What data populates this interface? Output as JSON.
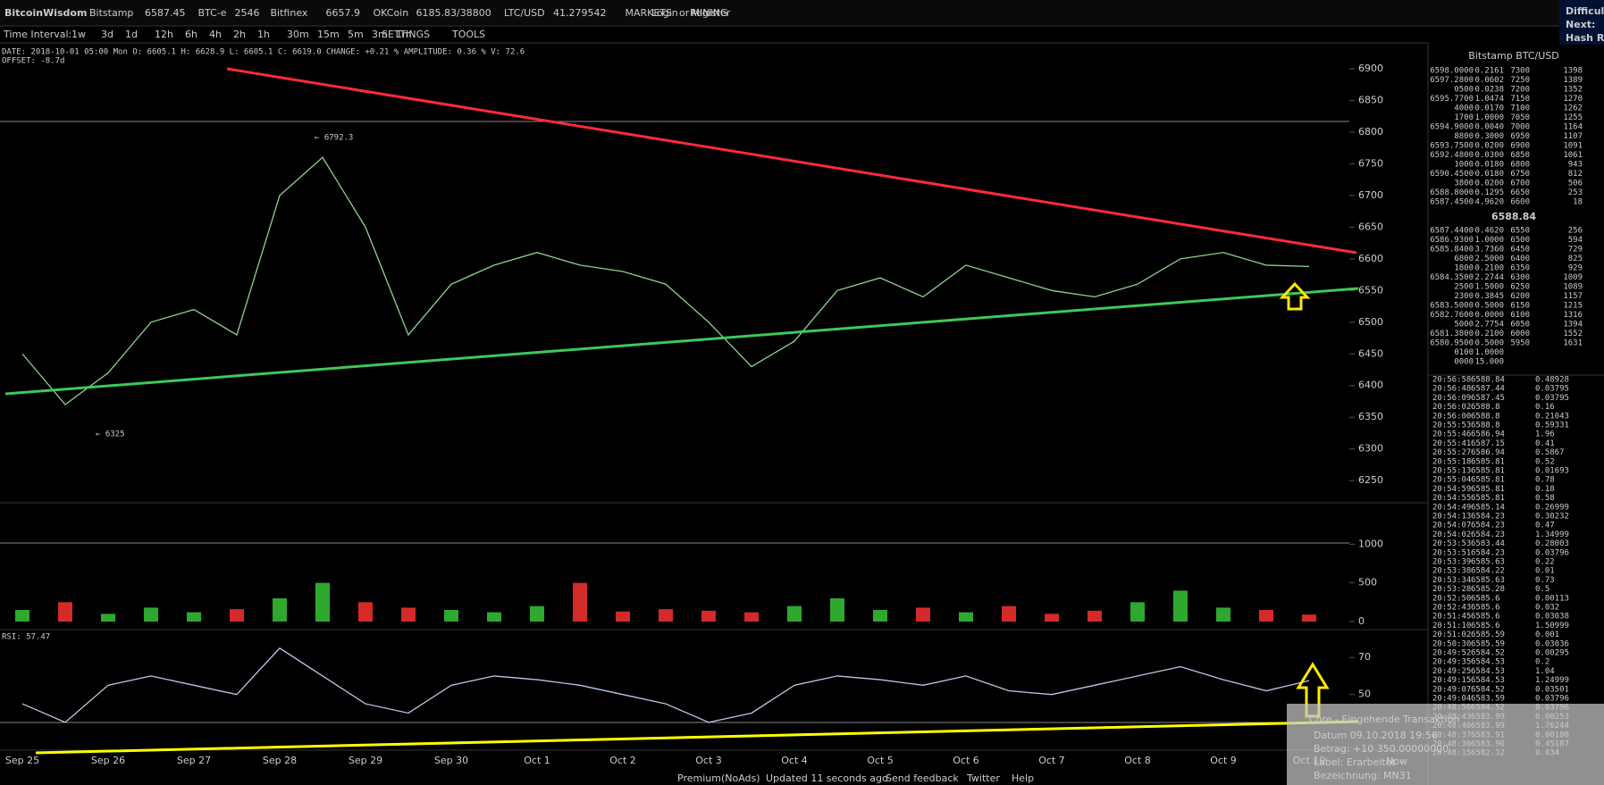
{
  "header": {
    "brand": "BitcoinWisdom",
    "tickers": [
      {
        "name": "Bitstamp",
        "price": "6587.45"
      },
      {
        "name": "BTC-e",
        "price": "2546"
      },
      {
        "name": "Bitfinex",
        "price": "6657.9"
      },
      {
        "name": "OKCoin",
        "price": "6185.83/38800"
      },
      {
        "name": "LTC/USD",
        "price": "41.279542"
      }
    ],
    "menus": [
      "MARKETS",
      "MINING"
    ],
    "login": "Login",
    "or": "or",
    "register": "Register",
    "difficulty": [
      "Difficulty",
      "Next:",
      "Hash Ra"
    ]
  },
  "toolbar": {
    "label": "Time Interval:",
    "intervals": [
      "1w",
      "3d",
      "1d",
      "12h",
      "6h",
      "4h",
      "2h",
      "1h",
      "30m",
      "15m",
      "5m",
      "3m",
      "1m"
    ],
    "settings": "SETTINGS",
    "tools": "TOOLS"
  },
  "info": {
    "line": "DATE: 2018-10-01 05:00 Mon   O: 6605.1   H: 6628.9   L: 6605.1   C: 6619.0   CHANGE: +0.21 %   AMPLITUDE: 0.36 %   V: 72.6",
    "offset": "OFFSET: -8.7d",
    "high_note": "← 6792.3",
    "low_note": "← 6325",
    "rsi_label": "RSI: 57.47"
  },
  "chart_data": {
    "type": "line",
    "categories": [
      "Sep 25",
      null,
      "Sep 26",
      null,
      "Sep 27",
      null,
      "Sep 28",
      null,
      "Sep 29",
      null,
      "Sep 30",
      null,
      "Oct 1",
      null,
      "Oct 2",
      null,
      "Oct 3",
      null,
      "Oct 4",
      null,
      "Oct 5",
      null,
      "Oct 6",
      null,
      "Oct 7",
      null,
      "Oct 8",
      null,
      "Oct 9",
      null,
      "Oct 10"
    ],
    "price": {
      "color": "#8fd18f",
      "values": [
        6450,
        6370,
        6420,
        6500,
        6520,
        6480,
        6700,
        6760,
        6650,
        6480,
        6560,
        6590,
        6610,
        6590,
        6580,
        6560,
        6500,
        6430,
        6470,
        6550,
        6570,
        6540,
        6590,
        6570,
        6550,
        6540,
        6560,
        6600,
        6610,
        6590,
        6588
      ],
      "ylim": [
        6215,
        6938
      ],
      "yticks": [
        6250,
        6300,
        6350,
        6400,
        6450,
        6500,
        6550,
        6600,
        6650,
        6700,
        6750,
        6800,
        6850,
        6900
      ]
    },
    "volume": {
      "up_color": "#2ea82e",
      "down_color": "#d42a2a",
      "values": [
        150,
        250,
        100,
        180,
        120,
        160,
        300,
        500,
        250,
        180,
        150,
        120,
        200,
        500,
        130,
        160,
        140,
        120,
        200,
        300,
        150,
        180,
        120,
        200,
        100,
        140,
        250,
        400,
        180,
        150,
        90
      ],
      "ylim": [
        0,
        1500
      ],
      "yticks": [
        0,
        500,
        1000
      ]
    },
    "rsi": {
      "color": "#b8c8e8",
      "values": [
        45,
        35,
        55,
        60,
        55,
        50,
        75,
        60,
        45,
        40,
        55,
        60,
        58,
        55,
        50,
        45,
        35,
        40,
        55,
        60,
        58,
        55,
        60,
        52,
        50,
        55,
        60,
        65,
        58,
        52,
        57.47
      ],
      "ylim": [
        20,
        85
      ],
      "yticks": [
        50,
        70
      ]
    }
  },
  "order_book": {
    "title": "Bitstamp BTC/USD",
    "asks": [
      [
        "6598.0000",
        "0.2161",
        "7300",
        "1398"
      ],
      [
        "6597.2800",
        "0.0602",
        "7250",
        "1389"
      ],
      [
        "0500",
        "0.0238",
        "7200",
        "1352"
      ],
      [
        "6595.7700",
        "1.0474",
        "7150",
        "1270"
      ],
      [
        "4000",
        "0.0170",
        "7100",
        "1262"
      ],
      [
        "1700",
        "1.0000",
        "7050",
        "1255"
      ],
      [
        "6594.9000",
        "0.0040",
        "7000",
        "1164"
      ],
      [
        "8800",
        "0.3000",
        "6950",
        "1107"
      ],
      [
        "6593.7500",
        "0.0200",
        "6900",
        "1091"
      ],
      [
        "6592.4800",
        "0.0300",
        "6850",
        "1061"
      ],
      [
        "1000",
        "0.0180",
        "6800",
        "943"
      ],
      [
        "6590.4500",
        "0.0180",
        "6750",
        "812"
      ],
      [
        "3800",
        "0.0200",
        "6700",
        "506"
      ],
      [
        "6588.8000",
        "0.1295",
        "6650",
        "253"
      ],
      [
        "6587.4500",
        "4.9620",
        "6600",
        "18"
      ]
    ],
    "last": "6588.84",
    "bids": [
      [
        "6587.4400",
        "0.4620",
        "6550",
        "256"
      ],
      [
        "6586.9300",
        "1.0000",
        "6500",
        "594"
      ],
      [
        "6585.8400",
        "3.7360",
        "6450",
        "729"
      ],
      [
        "6800",
        "2.5000",
        "6400",
        "825"
      ],
      [
        "1800",
        "0.2100",
        "6350",
        "929"
      ],
      [
        "6584.3500",
        "2.2744",
        "6300",
        "1009"
      ],
      [
        "2500",
        "1.5000",
        "6250",
        "1089"
      ],
      [
        "2300",
        "0.3845",
        "6200",
        "1157"
      ],
      [
        "6583.5000",
        "0.5000",
        "6150",
        "1215"
      ],
      [
        "6582.7600",
        "0.0000",
        "6100",
        "1316"
      ],
      [
        "5000",
        "2.7754",
        "6050",
        "1394"
      ],
      [
        "6581.3800",
        "0.2100",
        "6000",
        "1552"
      ],
      [
        "6580.9500",
        "0.5000",
        "5950",
        "1631"
      ],
      [
        "0100",
        "1.0000"
      ],
      [
        "0000",
        "15.000"
      ]
    ]
  },
  "trades": [
    {
      "time": "20:56:58",
      "price": "6588.84",
      "amount": "0.48928",
      "color": "#3fcf3f"
    },
    {
      "time": "20:56:48",
      "price": "6587.44",
      "amount": "0.03795",
      "color": "#e04040"
    },
    {
      "time": "20:56:09",
      "price": "6587.45",
      "amount": "0.03795",
      "color": "#e04040"
    },
    {
      "time": "20:56:02",
      "price": "6588.8",
      "amount": "0.16",
      "color": "#e04040"
    },
    {
      "time": "20:56:00",
      "price": "6588.8",
      "amount": "0.21043",
      "color": "#3fcf3f"
    },
    {
      "time": "20:55:53",
      "price": "6588.8",
      "amount": "0.59331",
      "color": "#3fcf3f"
    },
    {
      "time": "20:55:46",
      "price": "6586.94",
      "amount": "1.96",
      "color": "#3fcf3f"
    },
    {
      "time": "20:55:41",
      "price": "6587.15",
      "amount": "0.41",
      "color": "#3fcf3f"
    },
    {
      "time": "20:55:27",
      "price": "6586.94",
      "amount": "0.5867",
      "color": "#3fcf3f"
    },
    {
      "time": "20:55:18",
      "price": "6585.81",
      "amount": "0.52",
      "color": "#3fcf3f"
    },
    {
      "time": "20:55:13",
      "price": "6585.81",
      "amount": "0.01693",
      "color": "#3fcf3f"
    },
    {
      "time": "20:55:04",
      "price": "6585.81",
      "amount": "0.78",
      "color": "#3fcf3f"
    },
    {
      "time": "20:54:59",
      "price": "6585.81",
      "amount": "0.18",
      "color": "#3fcf3f"
    },
    {
      "time": "20:54:55",
      "price": "6585.81",
      "amount": "0.58",
      "color": "#3fcf3f"
    },
    {
      "time": "20:54:49",
      "price": "6585.14",
      "amount": "0.26999",
      "color": "#3fcf3f"
    },
    {
      "time": "20:54:13",
      "price": "6584.23",
      "amount": "0.30232",
      "color": "#3fcf3f"
    },
    {
      "time": "20:54:07",
      "price": "6584.23",
      "amount": "0.47",
      "color": "#3fcf3f"
    },
    {
      "time": "20:54:02",
      "price": "6584.23",
      "amount": "1.34999",
      "color": "#3fcf3f"
    },
    {
      "time": "20:53:53",
      "price": "6583.44",
      "amount": "0.28003",
      "color": "#e04040"
    },
    {
      "time": "20:53:51",
      "price": "6584.23",
      "amount": "0.03796",
      "color": "#e04040"
    },
    {
      "time": "20:53:39",
      "price": "6585.63",
      "amount": "0.22",
      "color": "#3fcf3f"
    },
    {
      "time": "20:53:38",
      "price": "6584.22",
      "amount": "0.01",
      "color": "#e04040"
    },
    {
      "time": "20:53:34",
      "price": "6585.63",
      "amount": "0.73",
      "color": "#3fcf3f"
    },
    {
      "time": "20:53:28",
      "price": "6585.28",
      "amount": "0.5",
      "color": "#3fcf3f"
    },
    {
      "time": "20:52:50",
      "price": "6585.6",
      "amount": "0.00113",
      "color": "#3fcf3f"
    },
    {
      "time": "20:52:43",
      "price": "6585.6",
      "amount": "0.032",
      "color": "#3fcf3f"
    },
    {
      "time": "20:51:45",
      "price": "6585.6",
      "amount": "0.03038",
      "color": "#3fcf3f"
    },
    {
      "time": "20:51:10",
      "price": "6585.6",
      "amount": "1.50999",
      "color": "#3fcf3f"
    },
    {
      "time": "20:51:02",
      "price": "6585.59",
      "amount": "0.001",
      "color": "#3fcf3f"
    },
    {
      "time": "20:50:30",
      "price": "6585.59",
      "amount": "0.03036",
      "color": "#3fcf3f"
    },
    {
      "time": "20:49:52",
      "price": "6584.52",
      "amount": "0.00295",
      "color": "#e04040"
    },
    {
      "time": "20:49:35",
      "price": "6584.53",
      "amount": "0.2",
      "color": "#e04040"
    },
    {
      "time": "20:49:25",
      "price": "6584.53",
      "amount": "1.04",
      "color": "#e04040"
    },
    {
      "time": "20:49:15",
      "price": "6584.53",
      "amount": "1.24999",
      "color": "#e04040"
    },
    {
      "time": "20:49:07",
      "price": "6584.52",
      "amount": "0.03501",
      "color": "#e04040"
    },
    {
      "time": "20:49:04",
      "price": "6583.59",
      "amount": "0.03796",
      "color": "#3fcf3f"
    },
    {
      "time": "20:48:56",
      "price": "6584.52",
      "amount": "0.03796",
      "color": "#e04040"
    },
    {
      "time": "20:48:43",
      "price": "6583.99",
      "amount": "0.00253",
      "color": "#3fcf3f"
    },
    {
      "time": "20:48:40",
      "price": "6583.99",
      "amount": "1.76244",
      "color": "#3fcf3f"
    },
    {
      "time": "20:48:37",
      "price": "6583.91",
      "amount": "0.00100",
      "color": "#3fcf3f"
    },
    {
      "time": "20:48:30",
      "price": "6583.96",
      "amount": "0.45187",
      "color": "#3fcf3f"
    },
    {
      "time": "20:48:15",
      "price": "6582.32",
      "amount": "0.034",
      "color": "#e04040"
    }
  ],
  "notification": {
    "title": "Core - Eingehende Transaktion",
    "lines": [
      "Datum 09.10.2018 19:56",
      "Betrag: +10 350.00000000",
      "Label: Erarbeitet",
      "Bezeichnung: MN31"
    ],
    "now": "Now"
  },
  "footer": {
    "links": [
      "Premium(NoAds)",
      "Updated 11 seconds ago",
      "Send feedback",
      "Twitter",
      "Help"
    ]
  }
}
